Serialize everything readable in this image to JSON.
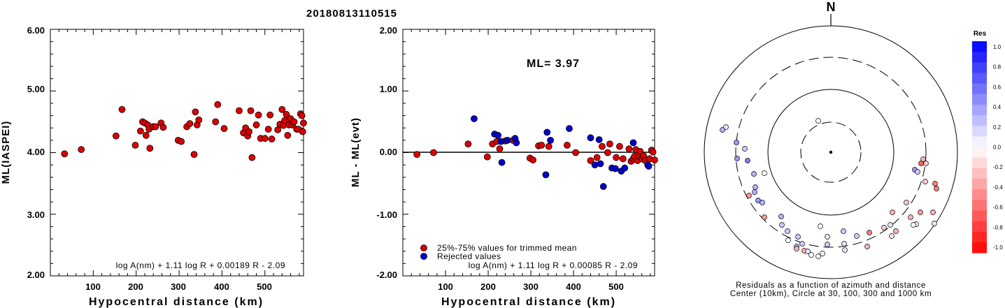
{
  "event_id": "20180813110515",
  "left_panel": {
    "ylabel": "ML(IASPEI)",
    "xlabel": "Hypocentral distance (km)",
    "y_ticks": [
      "6.00",
      "5.00",
      "4.00",
      "3.00",
      "2.00"
    ],
    "x_ticks": [
      "100",
      "200",
      "300",
      "400",
      "500"
    ],
    "formula": "log A(nm) + 1.11 log R + 0.00189 R - 2.09"
  },
  "mid_panel": {
    "ylabel": "ML - ML(evt)",
    "xlabel": "Hypocentral distance (km)",
    "y_ticks": [
      "2.00",
      "1.00",
      "0.00",
      "-1.00",
      "-2.00"
    ],
    "x_ticks": [
      "100",
      "200",
      "300",
      "400",
      "500"
    ],
    "ml_text": "ML= 3.97",
    "legend": [
      "25%-75% values for trimmed mean",
      "Rejected values"
    ],
    "formula": "log A(nm) + 1.11 log R + 0.00085 R - 2.09"
  },
  "map_panel": {
    "north": "N",
    "caption1": "Residuals as a function of azimuth and distance",
    "caption2": "Center (10km), Circle at 30, 100, 300 and 1000 km"
  },
  "colorbar": {
    "title": "Res",
    "labels": [
      "1.0",
      "0.8",
      "0.6",
      "0.4",
      "0.2",
      "0.0",
      "-0.2",
      "-0.4",
      "-0.6",
      "-0.8",
      "-1.0"
    ]
  },
  "colors": {
    "trimmed": "#dd0000",
    "rejected": "#0000cc"
  },
  "chart_data": [
    {
      "type": "scatter",
      "title": "20180813110515",
      "xlabel": "Hypocentral distance (km)",
      "ylabel": "ML(IASPEI)",
      "xlim": [
        0,
        590
      ],
      "ylim": [
        2.0,
        6.0
      ],
      "series": [
        {
          "values": [
            [
              33,
              3.98
            ],
            [
              72,
              4.05
            ],
            [
              153,
              4.27
            ],
            [
              167,
              4.7
            ],
            [
              198,
              4.12
            ],
            [
              210,
              4.35
            ],
            [
              215,
              4.5
            ],
            [
              220,
              4.48
            ],
            [
              223,
              4.28
            ],
            [
              227,
              4.45
            ],
            [
              230,
              4.38
            ],
            [
              232,
              4.07
            ],
            [
              240,
              4.42
            ],
            [
              245,
              4.42
            ],
            [
              258,
              4.48
            ],
            [
              263,
              4.41
            ],
            [
              298,
              4.2
            ],
            [
              305,
              4.18
            ],
            [
              318,
              4.42
            ],
            [
              325,
              4.47
            ],
            [
              335,
              3.97
            ],
            [
              338,
              4.66
            ],
            [
              342,
              4.45
            ],
            [
              346,
              4.53
            ],
            [
              385,
              4.5
            ],
            [
              390,
              4.78
            ],
            [
              405,
              4.39
            ],
            [
              440,
              4.68
            ],
            [
              450,
              4.32
            ],
            [
              455,
              4.4
            ],
            [
              460,
              4.27
            ],
            [
              463,
              4.34
            ],
            [
              467,
              4.68
            ],
            [
              470,
              3.92
            ],
            [
              480,
              4.45
            ],
            [
              485,
              4.61
            ],
            [
              490,
              4.23
            ],
            [
              500,
              4.23
            ],
            [
              508,
              4.38
            ],
            [
              512,
              4.61
            ],
            [
              516,
              4.22
            ],
            [
              530,
              4.37
            ],
            [
              535,
              4.46
            ],
            [
              540,
              4.7
            ],
            [
              543,
              4.44
            ],
            [
              546,
              4.52
            ],
            [
              550,
              4.62
            ],
            [
              553,
              4.28
            ],
            [
              556,
              4.45
            ],
            [
              560,
              4.55
            ],
            [
              564,
              4.45
            ],
            [
              568,
              4.5
            ],
            [
              574,
              4.38
            ],
            [
              578,
              4.38
            ],
            [
              583,
              4.63
            ],
            [
              586,
              4.6
            ],
            [
              588,
              4.34
            ],
            [
              590,
              4.48
            ]
          ]
        }
      ]
    },
    {
      "type": "scatter",
      "xlabel": "Hypocentral distance (km)",
      "ylabel": "ML - ML(evt)",
      "xlim": [
        0,
        590
      ],
      "ylim": [
        -2.0,
        2.0
      ],
      "series": [
        {
          "name": "25%-75% values for trimmed mean",
          "values": [
            [
              33,
              -0.03
            ],
            [
              72,
              0.0
            ],
            [
              153,
              0.14
            ],
            [
              198,
              -0.07
            ],
            [
              210,
              0.14
            ],
            [
              220,
              0.18
            ],
            [
              227,
              0.06
            ],
            [
              240,
              0.19
            ],
            [
              258,
              0.2
            ],
            [
              298,
              -0.09
            ],
            [
              305,
              -0.12
            ],
            [
              318,
              0.11
            ],
            [
              325,
              0.12
            ],
            [
              342,
              0.1
            ],
            [
              385,
              0.12
            ],
            [
              405,
              0.0
            ],
            [
              440,
              -0.13
            ],
            [
              455,
              -0.08
            ],
            [
              467,
              0.1
            ],
            [
              480,
              0.0
            ],
            [
              485,
              0.14
            ],
            [
              500,
              -0.08
            ],
            [
              508,
              0.1
            ],
            [
              516,
              -0.1
            ],
            [
              530,
              0.06
            ],
            [
              535,
              -0.14
            ],
            [
              540,
              -0.1
            ],
            [
              543,
              -0.06
            ],
            [
              546,
              0.05
            ],
            [
              550,
              -0.13
            ],
            [
              553,
              -0.05
            ],
            [
              556,
              0.02
            ],
            [
              560,
              -0.1
            ],
            [
              564,
              -0.05
            ],
            [
              568,
              -0.13
            ],
            [
              578,
              -0.1
            ],
            [
              583,
              0.04
            ],
            [
              586,
              0.01
            ],
            [
              590,
              -0.12
            ]
          ]
        },
        {
          "name": "Rejected values",
          "values": [
            [
              167,
              0.55
            ],
            [
              215,
              0.3
            ],
            [
              223,
              0.28
            ],
            [
              230,
              0.18
            ],
            [
              232,
              -0.16
            ],
            [
              245,
              0.2
            ],
            [
              263,
              0.23
            ],
            [
              266,
              0.16
            ],
            [
              335,
              -0.36
            ],
            [
              338,
              0.33
            ],
            [
              346,
              0.2
            ],
            [
              390,
              0.39
            ],
            [
              440,
              0.24
            ],
            [
              450,
              -0.2
            ],
            [
              460,
              0.21
            ],
            [
              463,
              -0.18
            ],
            [
              470,
              -0.55
            ],
            [
              490,
              -0.25
            ],
            [
              498,
              -0.26
            ],
            [
              512,
              -0.3
            ],
            [
              520,
              -0.25
            ],
            [
              540,
              0.16
            ],
            [
              574,
              -0.2
            ],
            [
              576,
              -0.22
            ]
          ]
        }
      ]
    },
    {
      "type": "scatter",
      "title": "Residuals as a function of azimuth and distance",
      "xlabel": "",
      "ylabel": "",
      "xlim": [
        -180,
        180
      ],
      "ylim": [
        -180,
        180
      ],
      "series": [
        {
          "values": [
            [
              -18,
              45,
              0.0
            ],
            [
              -150,
              36,
              0.1
            ],
            [
              -155,
              32,
              0.3
            ],
            [
              -135,
              14,
              0.4
            ],
            [
              -123,
              5,
              0.2
            ],
            [
              -134,
              -9,
              0.4
            ],
            [
              -95,
              -30,
              0.0
            ],
            [
              -119,
              -12,
              0.5
            ],
            [
              -110,
              -31,
              0.3
            ],
            [
              -108,
              -50,
              0.3
            ],
            [
              -109,
              -57,
              0.3
            ],
            [
              -104,
              -69,
              0.4
            ],
            [
              -117,
              -62,
              -0.4
            ],
            [
              -98,
              -72,
              0.3
            ],
            [
              -95,
              -93,
              -0.4
            ],
            [
              -71,
              -92,
              0.3
            ],
            [
              -70,
              -104,
              0.2
            ],
            [
              -62,
              -113,
              0.2
            ],
            [
              -61,
              -126,
              0.0
            ],
            [
              -49,
              -135,
              0.3
            ],
            [
              -47,
              -121,
              0.2
            ],
            [
              -41,
              -131,
              0.2
            ],
            [
              -49,
              -138,
              -0.3
            ],
            [
              -38,
              -141,
              -0.3
            ],
            [
              -33,
              -142,
              0.1
            ],
            [
              -28,
              -147,
              0.0
            ],
            [
              -18,
              -149,
              0.0
            ],
            [
              -12,
              -145,
              0.0
            ],
            [
              -5,
              -132,
              0.2
            ],
            [
              -15,
              -106,
              0.0
            ],
            [
              -5,
              -121,
              0.1
            ],
            [
              19,
              -131,
              0.1
            ],
            [
              20,
              -140,
              0.1
            ],
            [
              52,
              -135,
              -0.3
            ],
            [
              37,
              -120,
              0.2
            ],
            [
              18,
              -113,
              0.2
            ],
            [
              55,
              -115,
              -0.5
            ],
            [
              76,
              -108,
              -0.2
            ],
            [
              87,
              -120,
              -0.1
            ],
            [
              88,
              -86,
              -0.3
            ],
            [
              85,
              -104,
              0.1
            ],
            [
              93,
              -113,
              -0.3
            ],
            [
              122,
              -103,
              -0.1
            ],
            [
              128,
              -86,
              -0.4
            ],
            [
              120,
              -25,
              0.4
            ],
            [
              124,
              -28,
              0.2
            ],
            [
              129,
              -16,
              -0.6
            ],
            [
              136,
              -16,
              -0.2
            ],
            [
              132,
              -10,
              -0.3
            ],
            [
              135,
              -42,
              -0.2
            ],
            [
              149,
              -45,
              -0.5
            ],
            [
              151,
              -52,
              -0.5
            ],
            [
              146,
              -86,
              -0.3
            ],
            [
              148,
              -102,
              0.1
            ],
            [
              108,
              -72,
              -0.2
            ],
            [
              114,
              -93,
              -0.3
            ],
            [
              118,
              -104,
              0.0
            ]
          ]
        }
      ]
    }
  ]
}
